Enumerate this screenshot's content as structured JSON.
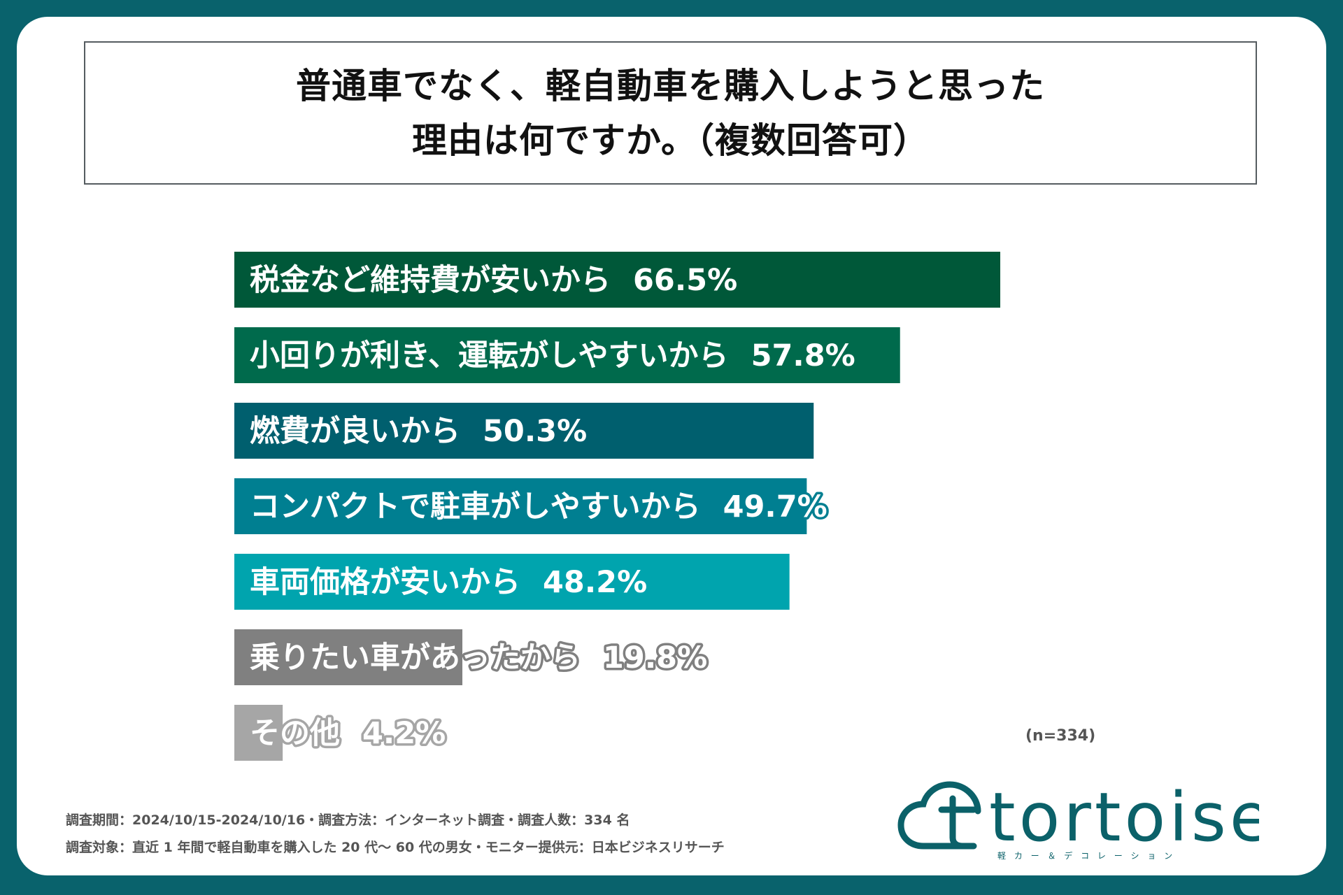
{
  "title": {
    "line1": "普通車でなく、軽自動車を購入しようと思った",
    "line2": "理由は何ですか。（複数回答可）"
  },
  "chart_data": {
    "type": "bar",
    "orientation": "horizontal",
    "categories": [
      "税金など維持費が安いから",
      "小回りが利き、運転がしやすいから",
      "燃費が良いから",
      "コンパクトで駐車がしやすいから",
      "車両価格が安いから",
      "乗りたい車があったから",
      "その他"
    ],
    "values": [
      66.5,
      57.8,
      50.3,
      49.7,
      48.2,
      19.8,
      4.2
    ],
    "value_labels": [
      "66.5%",
      "57.8%",
      "50.3%",
      "49.7%",
      "48.2%",
      "19.8%",
      "4.2%"
    ],
    "colors": [
      "#005839",
      "#006a4c",
      "#005f6e",
      "#007f91",
      "#00a4ae",
      "#808080",
      "#a6a6a6"
    ],
    "unit": "%",
    "legend": "none",
    "grid": false
  },
  "sample_note": "(n=334)",
  "footnotes": {
    "line1": "調査期間：2024/10/15-2024/10/16・調査方法：インターネット調査・調査人数：334 名",
    "line2": "調査対象：直近 1 年間で軽自動車を購入した 20 代〜 60 代の男女・モニター提供元：日本ビジネスリサーチ"
  },
  "logo": {
    "wordmark": "tortoise",
    "tagline": "軽 カ ー ＆ デ コ レ ー シ ョ ン",
    "color": "#0b6169"
  }
}
